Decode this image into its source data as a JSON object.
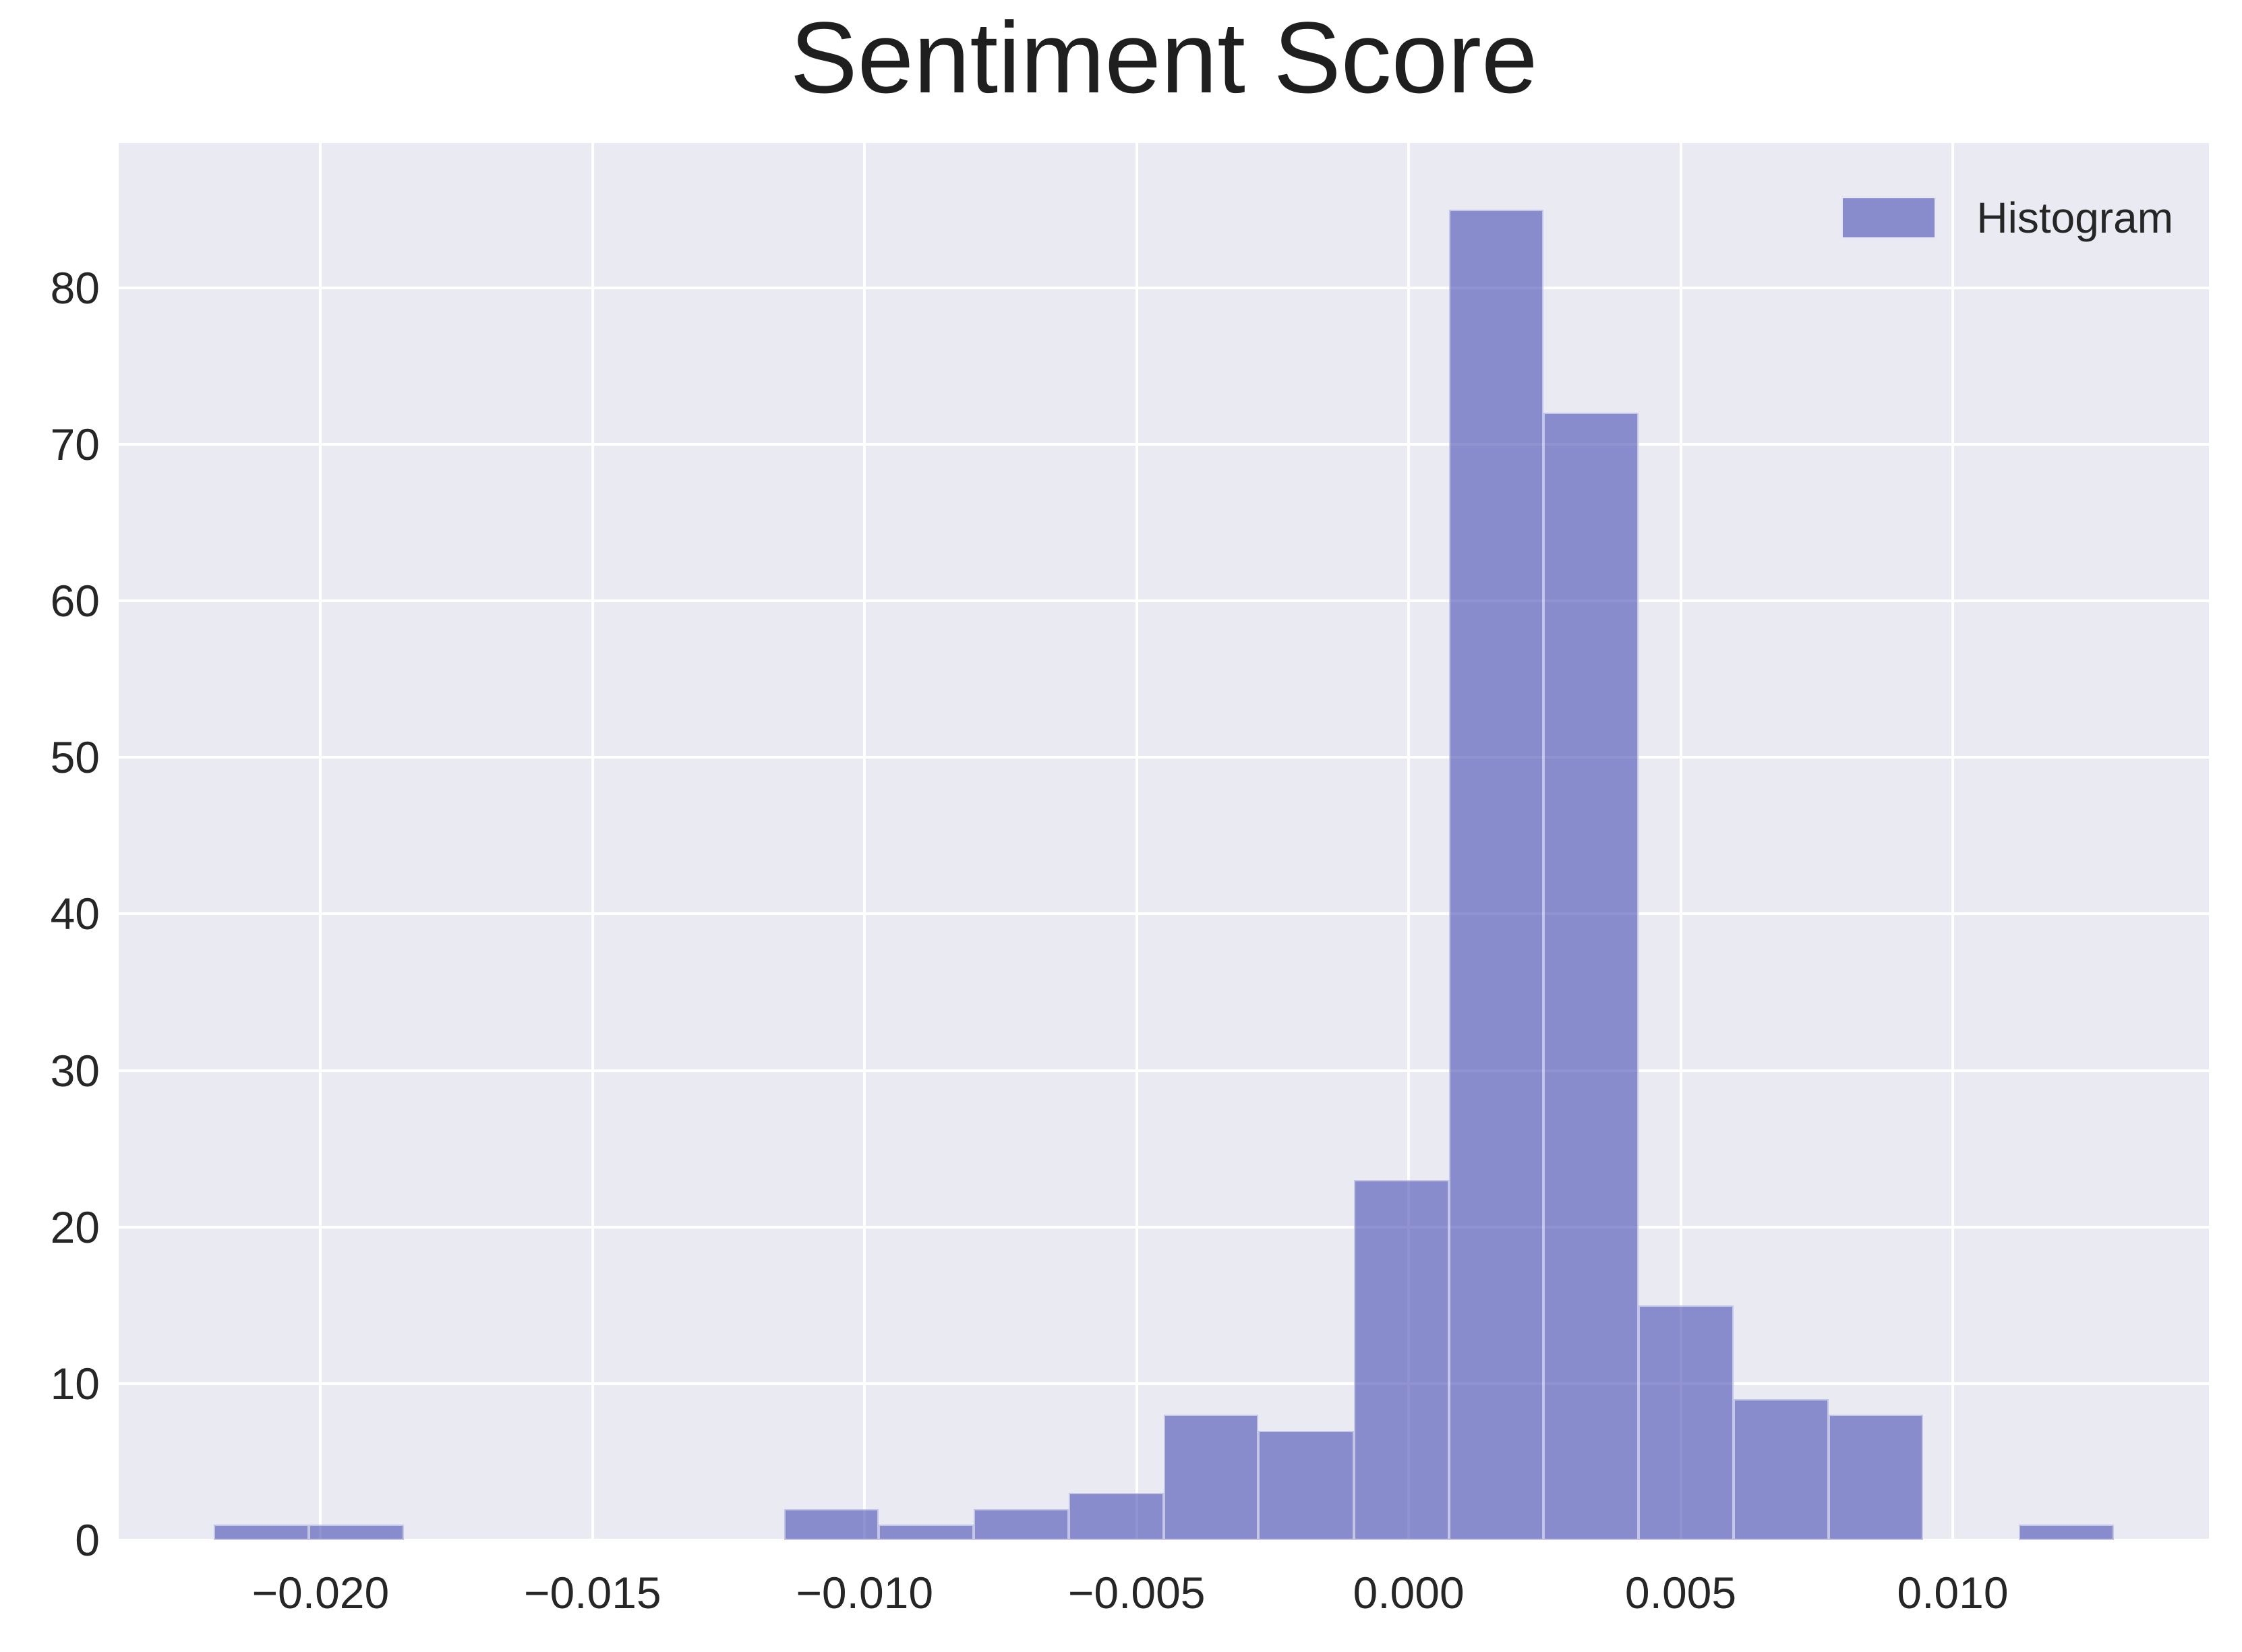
{
  "title": "Sentiment Score",
  "legend": {
    "label": "Histogram"
  },
  "colors": {
    "figure_bg": "#ffffff",
    "axes_bg": "#eaeaf2",
    "grid": "#ffffff",
    "bar_fill": "rgba(90,94,185,0.67)",
    "bar_composited": "#8B8DC8",
    "bar_border": "rgba(255,255,255,0.5)",
    "text": "#262626"
  },
  "chart_data": {
    "type": "bar",
    "variant": "histogram",
    "title": "Sentiment Score",
    "series_label": "Histogram",
    "xlabel": "",
    "ylabel": "",
    "grid": true,
    "legend_position": "upper right",
    "xlim": [
      -0.02371,
      0.01471
    ],
    "ylim": [
      0,
      89.25
    ],
    "x_ticks": [
      -0.02,
      -0.015,
      -0.01,
      -0.005,
      0.0,
      0.005,
      0.01
    ],
    "x_tick_labels": [
      "−0.020",
      "−0.015",
      "−0.010",
      "−0.005",
      "0.000",
      "0.005",
      "0.010"
    ],
    "y_ticks": [
      0,
      10,
      20,
      30,
      40,
      50,
      60,
      70,
      80
    ],
    "bin_edges": [
      -0.02196,
      -0.02021,
      -0.01847,
      -0.01672,
      -0.01498,
      -0.01323,
      -0.01148,
      -0.00974,
      -0.00799,
      -0.00625,
      -0.0045,
      -0.00276,
      -0.00101,
      0.00074,
      0.00248,
      0.00423,
      0.00597,
      0.00772,
      0.00946,
      0.01121,
      0.01296
    ],
    "counts": [
      1,
      1,
      0,
      0,
      0,
      0,
      2,
      1,
      2,
      3,
      8,
      7,
      23,
      85,
      72,
      15,
      9,
      8,
      0,
      1
    ],
    "total_observations": 238
  }
}
